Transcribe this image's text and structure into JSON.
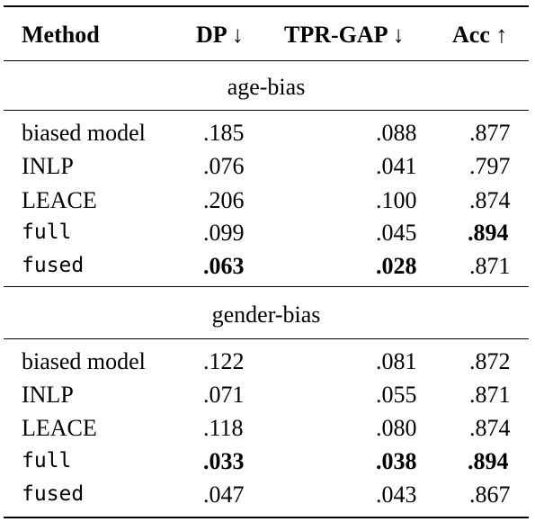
{
  "header": {
    "method": "Method",
    "dp": "DP",
    "dp_arrow": "↓",
    "tpr": "TPR-GAP",
    "tpr_arrow": "↓",
    "acc": "Acc",
    "acc_arrow": "↑"
  },
  "sections": [
    {
      "title": "age-bias",
      "rows": [
        {
          "method": "biased model",
          "dp": ".185",
          "tpr": ".088",
          "acc": ".877"
        },
        {
          "method": "INLP",
          "dp": ".076",
          "tpr": ".041",
          "acc": ".797"
        },
        {
          "method": "LEACE",
          "dp": ".206",
          "tpr": ".100",
          "acc": ".874"
        },
        {
          "method": "full",
          "dp": ".099",
          "tpr": ".045",
          "acc": ".894"
        },
        {
          "method": "fused",
          "dp": ".063",
          "tpr": ".028",
          "acc": ".871"
        }
      ]
    },
    {
      "title": "gender-bias",
      "rows": [
        {
          "method": "biased model",
          "dp": ".122",
          "tpr": ".081",
          "acc": ".872"
        },
        {
          "method": "INLP",
          "dp": ".071",
          "tpr": ".055",
          "acc": ".871"
        },
        {
          "method": "LEACE",
          "dp": ".118",
          "tpr": ".080",
          "acc": ".874"
        },
        {
          "method": "full",
          "dp": ".033",
          "tpr": ".038",
          "acc": ".894"
        },
        {
          "method": "fused",
          "dp": ".047",
          "tpr": ".043",
          "acc": ".867"
        }
      ]
    }
  ]
}
